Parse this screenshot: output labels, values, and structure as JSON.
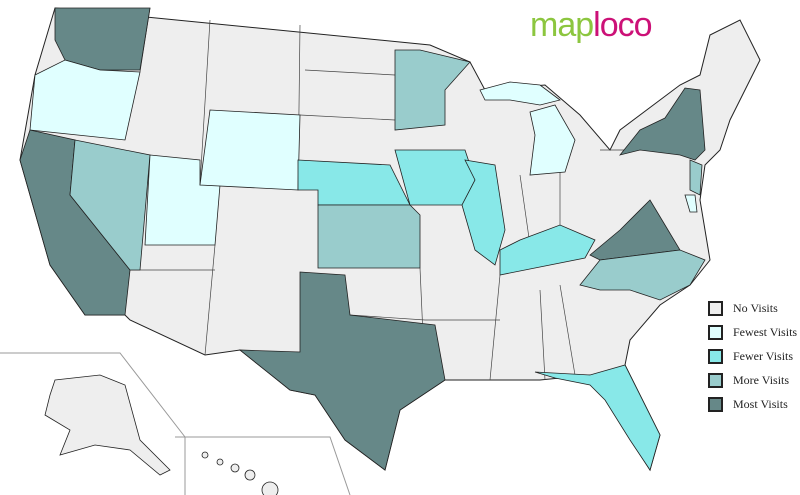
{
  "logo": {
    "part1": "map",
    "part2": "loco"
  },
  "legend": [
    {
      "label": "No Visits",
      "color": "#eeeeee"
    },
    {
      "label": "Fewest Visits",
      "color": "#e0ffff"
    },
    {
      "label": "Fewer Visits",
      "color": "#88e8e8"
    },
    {
      "label": "More Visits",
      "color": "#99cccc"
    },
    {
      "label": "Most Visits",
      "color": "#668888"
    }
  ],
  "states": [
    {
      "name": "Washington",
      "level": 4
    },
    {
      "name": "Oregon",
      "level": 1
    },
    {
      "name": "California",
      "level": 4
    },
    {
      "name": "Nevada",
      "level": 3
    },
    {
      "name": "Utah",
      "level": 1
    },
    {
      "name": "Wyoming",
      "level": 1
    },
    {
      "name": "Nebraska",
      "level": 2
    },
    {
      "name": "Kansas",
      "level": 3
    },
    {
      "name": "Minnesota",
      "level": 3
    },
    {
      "name": "Iowa",
      "level": 2
    },
    {
      "name": "Illinois",
      "level": 2
    },
    {
      "name": "Kentucky",
      "level": 2
    },
    {
      "name": "Texas",
      "level": 4
    },
    {
      "name": "Virginia",
      "level": 4
    },
    {
      "name": "North Carolina",
      "level": 3
    },
    {
      "name": "Florida",
      "level": 2
    },
    {
      "name": "New York",
      "level": 4
    },
    {
      "name": "New Jersey",
      "level": 3
    },
    {
      "name": "Delaware",
      "level": 1
    },
    {
      "name": "Michigan",
      "level": 1
    }
  ]
}
